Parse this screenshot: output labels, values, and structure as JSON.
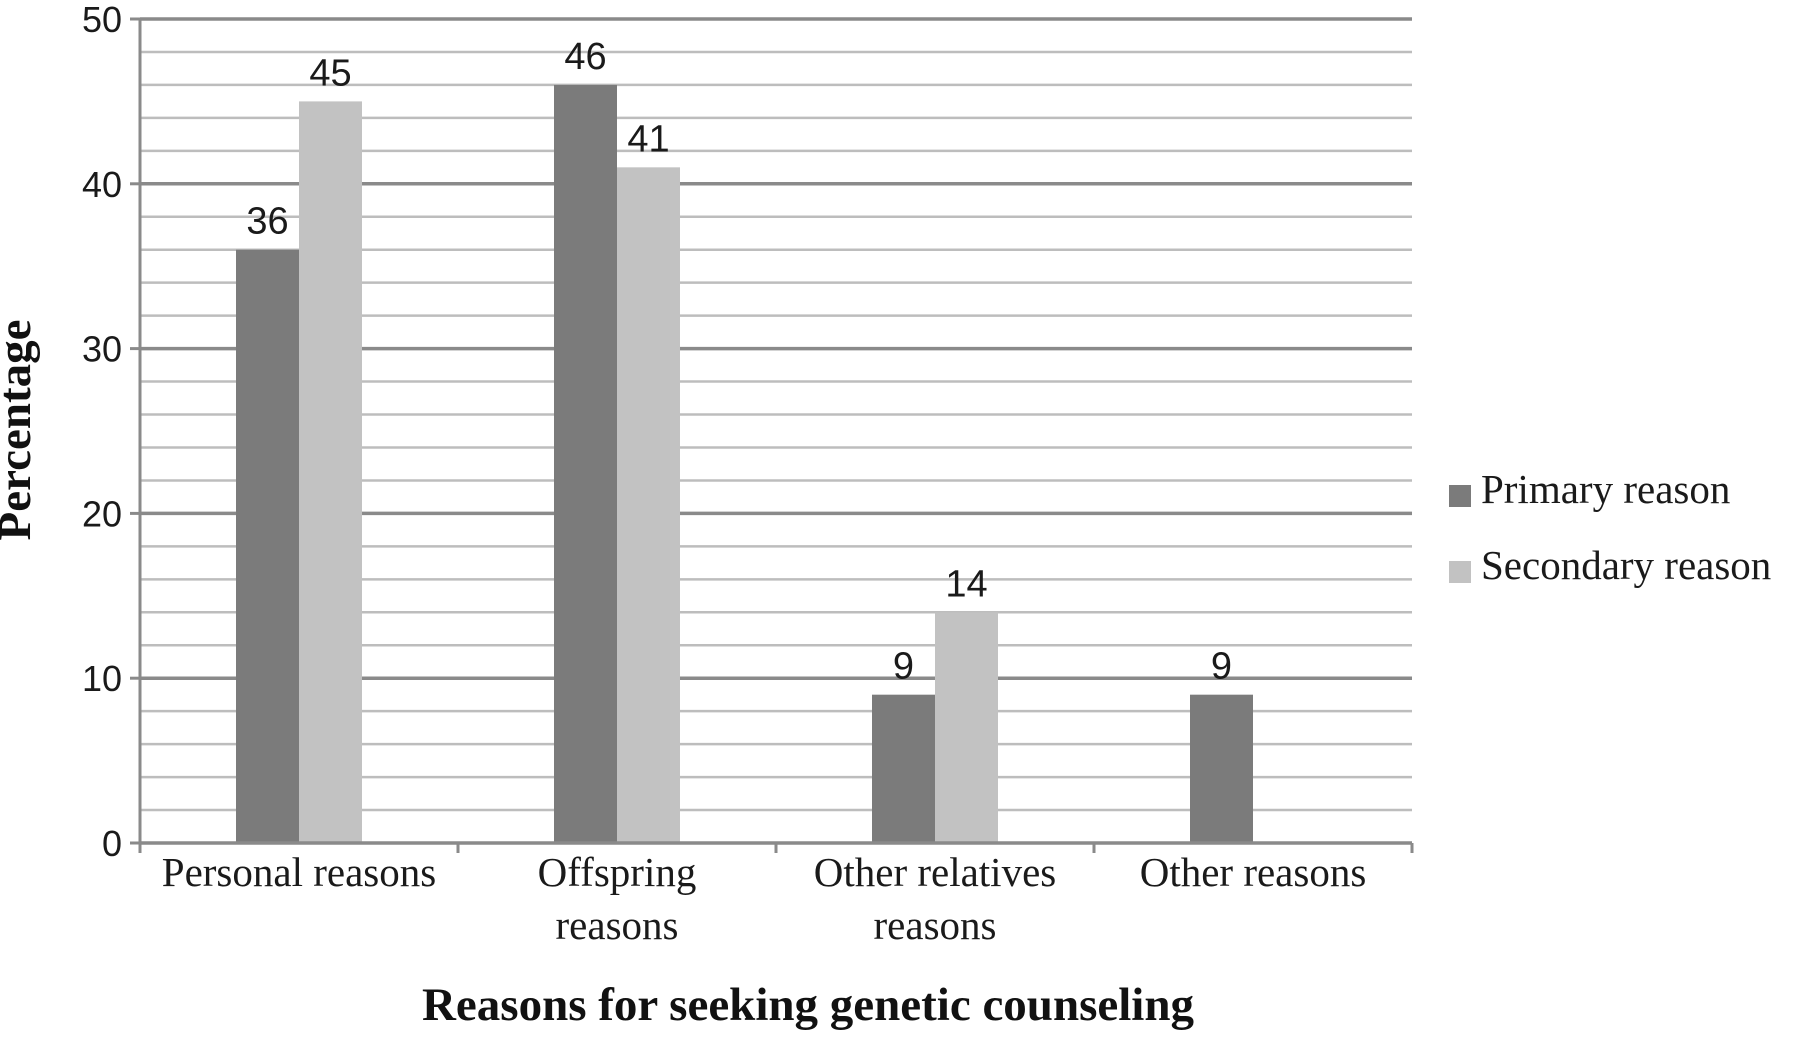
{
  "chart_data": {
    "type": "bar",
    "categories": [
      [
        "Personal reasons"
      ],
      [
        "Offspring",
        "reasons"
      ],
      [
        "Other relatives",
        "reasons"
      ],
      [
        "Other reasons"
      ]
    ],
    "series": [
      {
        "name": "Primary reason",
        "values": [
          36,
          46,
          9,
          9
        ],
        "color": "#7b7b7b"
      },
      {
        "name": "Secondary reason",
        "values": [
          45,
          41,
          14,
          0
        ],
        "color": "#c2c2c2"
      }
    ],
    "data_labels": [
      [
        "36",
        "45"
      ],
      [
        "46",
        "41"
      ],
      [
        "9",
        "14"
      ],
      [
        "9",
        null
      ]
    ],
    "xlabel": "Reasons for seeking genetic counseling",
    "ylabel": "Percentage",
    "ylim": [
      0,
      50
    ],
    "yticks": [
      0,
      10,
      20,
      30,
      40,
      50
    ],
    "minor_grid_step": 2,
    "grid": true,
    "legend_position": "right"
  }
}
